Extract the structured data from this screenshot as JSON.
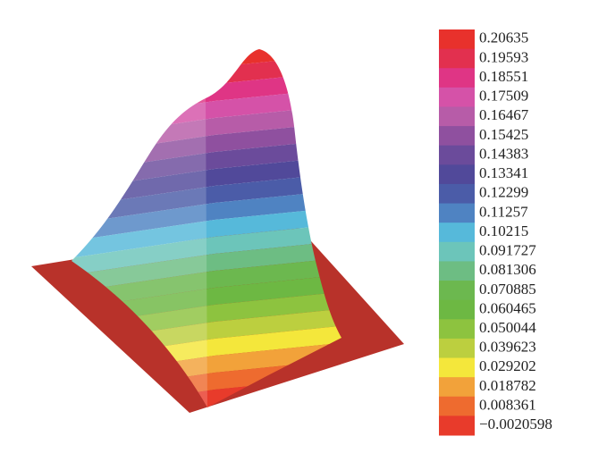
{
  "chart_data": {
    "type": "surface",
    "levels": [
      0.20635,
      0.19593,
      0.18551,
      0.17509,
      0.16467,
      0.15425,
      0.14383,
      0.13341,
      0.12299,
      0.11257,
      0.10215,
      0.091727,
      0.081306,
      0.070885,
      0.060465,
      0.050044,
      0.039623,
      0.029202,
      0.018782,
      0.008361,
      {
        "value": -0.0020598,
        "label": "−0.0020598"
      }
    ],
    "colors": [
      "#e8312c",
      "#e2304f",
      "#df3585",
      "#d552a8",
      "#b75ca8",
      "#8f509f",
      "#6b4b9b",
      "#51499a",
      "#4b5ca8",
      "#4f83c2",
      "#56b9da",
      "#6cc5ba",
      "#6dbd83",
      "#6cb84f",
      "#6db843",
      "#8dc33f",
      "#bccf3f",
      "#f4e73b",
      "#f2a23a",
      "#ee6b2f",
      "#e83b2b"
    ],
    "base_color": "#b8322a"
  }
}
